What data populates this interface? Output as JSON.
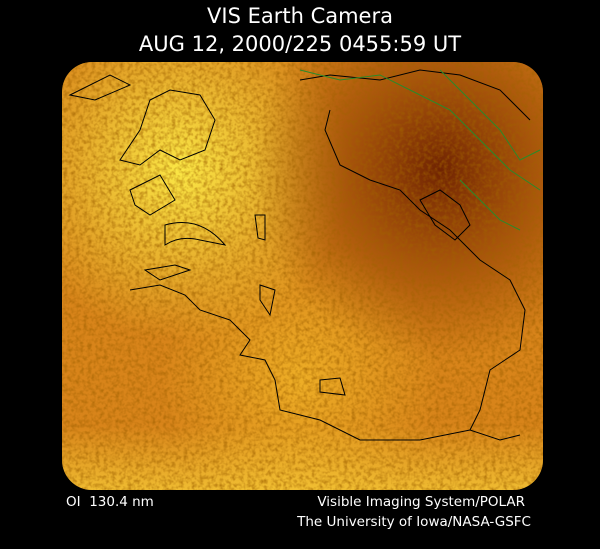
{
  "header": {
    "title": "VIS Earth Camera",
    "timestamp": "AUG 12, 2000/225 0455:59 UT"
  },
  "footer": {
    "wavelength": "OI  130.4 nm",
    "instrument": "Visible Imaging System/POLAR",
    "institution": "The University of Iowa/NASA-GSFC"
  }
}
